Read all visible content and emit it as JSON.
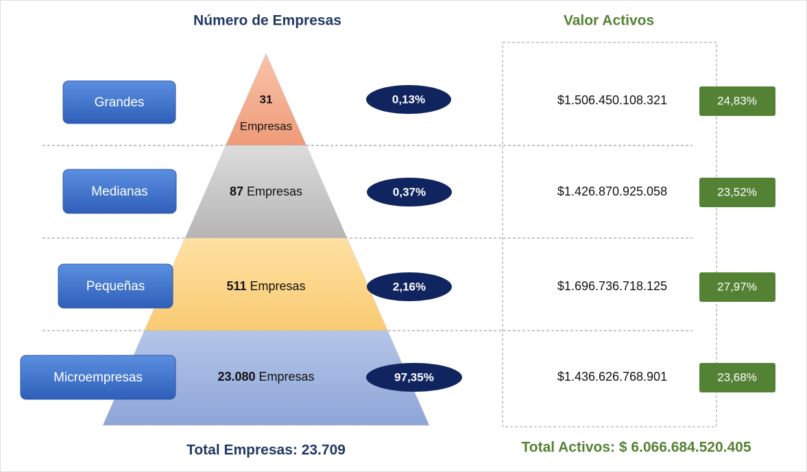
{
  "header": {
    "left_title": "Número de Empresas",
    "right_title": "Valor Activos"
  },
  "rows": [
    {
      "label": "Grandes",
      "count": "31",
      "unit": "Empresas",
      "share": "0,13%",
      "assets": "$1.506.450.108.321",
      "asset_share": "24,83%"
    },
    {
      "label": "Medianas",
      "count": "87",
      "unit": "Empresas",
      "share": "0,37%",
      "assets": "$1.426.870.925.058",
      "asset_share": "23,52%"
    },
    {
      "label": "Pequeñas",
      "count": "511",
      "unit": "Empresas",
      "share": "2,16%",
      "assets": "$1.696.736.718.125",
      "asset_share": "27,97%"
    },
    {
      "label": "Microempresas",
      "count": "23.080",
      "unit": "Empresas",
      "share": "97,35%",
      "assets": "$1.436.626.768.901",
      "asset_share": "23,68%"
    }
  ],
  "footer": {
    "total_companies": "Total Empresas: 23.709",
    "total_assets": "Total Activos: $ 6.066.684.520.405"
  }
}
